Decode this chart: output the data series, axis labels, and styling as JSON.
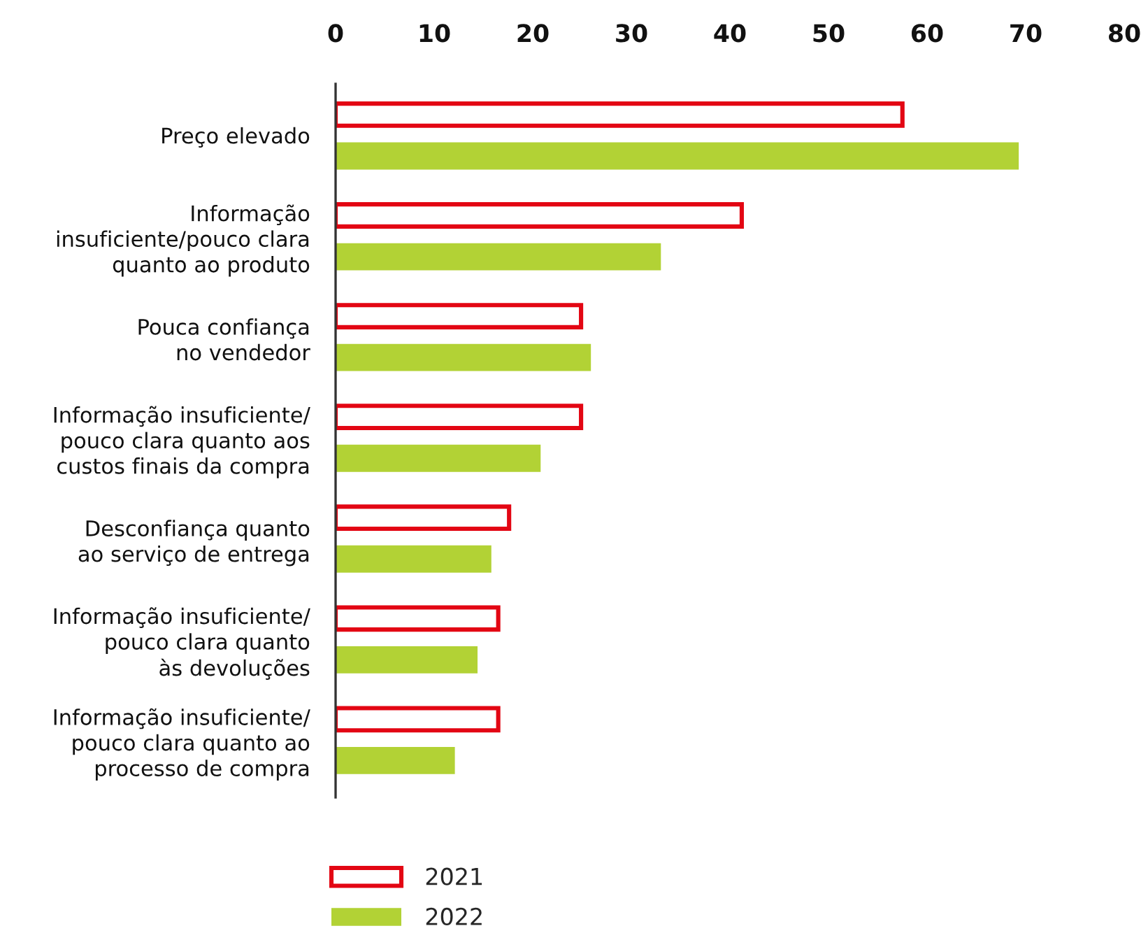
{
  "chart_data": {
    "type": "bar",
    "orientation": "horizontal",
    "categories": [
      "Preço elevado",
      "Informação\ninsuficiente/pouco clara\nquanto ao produto",
      "Pouca confiança\nno vendedor",
      "Informação insuficiente/\npouco clara quanto aos\ncustos finais da compra",
      "Desconfiança quanto\nao serviço de entrega",
      "Informação insuficiente/\npouco clara quanto\nàs devoluções",
      "Informação insuficiente/\npouco clara quanto ao\nprocesso de compra"
    ],
    "series": [
      {
        "name": "2021",
        "color": "#e30613",
        "values": [
          57.5,
          41.2,
          24.9,
          24.9,
          17.6,
          16.5,
          16.5
        ]
      },
      {
        "name": "2022",
        "color": "#b2d235",
        "values": [
          69.3,
          33.0,
          25.9,
          20.8,
          15.8,
          14.4,
          12.1
        ]
      }
    ],
    "xlim": [
      0,
      80
    ],
    "xticks": [
      0,
      10,
      20,
      30,
      40,
      50,
      60,
      70,
      80
    ],
    "legend": "bottom"
  }
}
